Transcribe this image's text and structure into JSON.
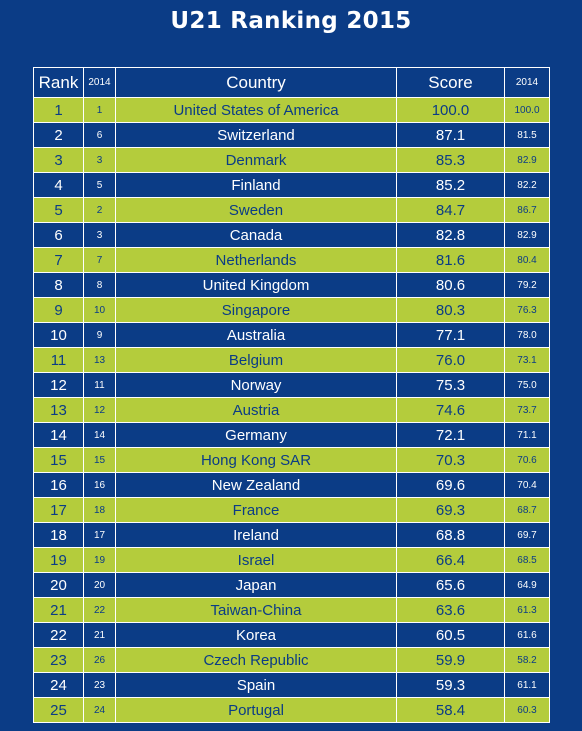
{
  "title": "U21 Ranking 2015",
  "chart_data": {
    "type": "table",
    "title": "U21 Ranking 2015",
    "columns": [
      "Rank",
      "2014",
      "Country",
      "Score",
      "2014"
    ],
    "rows": [
      {
        "rank": "1",
        "rank2014": "1",
        "country": "United States of America",
        "score": "100.0",
        "score2014": "100.0"
      },
      {
        "rank": "2",
        "rank2014": "6",
        "country": "Switzerland",
        "score": "87.1",
        "score2014": "81.5"
      },
      {
        "rank": "3",
        "rank2014": "3",
        "country": "Denmark",
        "score": "85.3",
        "score2014": "82.9"
      },
      {
        "rank": "4",
        "rank2014": "5",
        "country": "Finland",
        "score": "85.2",
        "score2014": "82.2"
      },
      {
        "rank": "5",
        "rank2014": "2",
        "country": "Sweden",
        "score": "84.7",
        "score2014": "86.7"
      },
      {
        "rank": "6",
        "rank2014": "3",
        "country": "Canada",
        "score": "82.8",
        "score2014": "82.9"
      },
      {
        "rank": "7",
        "rank2014": "7",
        "country": "Netherlands",
        "score": "81.6",
        "score2014": "80.4"
      },
      {
        "rank": "8",
        "rank2014": "8",
        "country": "United Kingdom",
        "score": "80.6",
        "score2014": "79.2"
      },
      {
        "rank": "9",
        "rank2014": "10",
        "country": "Singapore",
        "score": "80.3",
        "score2014": "76.3"
      },
      {
        "rank": "10",
        "rank2014": "9",
        "country": "Australia",
        "score": "77.1",
        "score2014": "78.0"
      },
      {
        "rank": "11",
        "rank2014": "13",
        "country": "Belgium",
        "score": "76.0",
        "score2014": "73.1"
      },
      {
        "rank": "12",
        "rank2014": "11",
        "country": "Norway",
        "score": "75.3",
        "score2014": "75.0"
      },
      {
        "rank": "13",
        "rank2014": "12",
        "country": "Austria",
        "score": "74.6",
        "score2014": "73.7"
      },
      {
        "rank": "14",
        "rank2014": "14",
        "country": "Germany",
        "score": "72.1",
        "score2014": "71.1"
      },
      {
        "rank": "15",
        "rank2014": "15",
        "country": "Hong Kong SAR",
        "score": "70.3",
        "score2014": "70.6"
      },
      {
        "rank": "16",
        "rank2014": "16",
        "country": "New Zealand",
        "score": "69.6",
        "score2014": "70.4"
      },
      {
        "rank": "17",
        "rank2014": "18",
        "country": "France",
        "score": "69.3",
        "score2014": "68.7"
      },
      {
        "rank": "18",
        "rank2014": "17",
        "country": "Ireland",
        "score": "68.8",
        "score2014": "69.7"
      },
      {
        "rank": "19",
        "rank2014": "19",
        "country": "Israel",
        "score": "66.4",
        "score2014": "68.5"
      },
      {
        "rank": "20",
        "rank2014": "20",
        "country": "Japan",
        "score": "65.6",
        "score2014": "64.9"
      },
      {
        "rank": "21",
        "rank2014": "22",
        "country": "Taiwan-China",
        "score": "63.6",
        "score2014": "61.3"
      },
      {
        "rank": "22",
        "rank2014": "21",
        "country": "Korea",
        "score": "60.5",
        "score2014": "61.6"
      },
      {
        "rank": "23",
        "rank2014": "26",
        "country": "Czech Republic",
        "score": "59.9",
        "score2014": "58.2"
      },
      {
        "rank": "24",
        "rank2014": "23",
        "country": "Spain",
        "score": "59.3",
        "score2014": "61.1"
      },
      {
        "rank": "25",
        "rank2014": "24",
        "country": "Portugal",
        "score": "58.4",
        "score2014": "60.3"
      }
    ]
  },
  "colors": {
    "background": "#0b3c86",
    "row_highlight": "#b4cc3c",
    "text_light": "#ffffff",
    "text_dark": "#0b3c86"
  }
}
